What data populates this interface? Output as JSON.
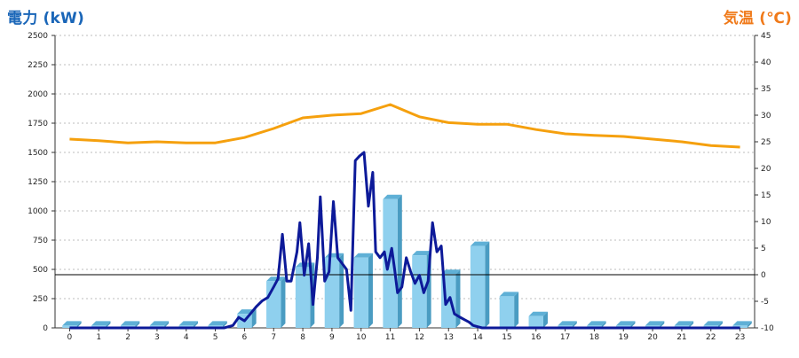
{
  "chart_data": {
    "type": "bar+line",
    "title": "",
    "left_axis": {
      "label": "電力 (kW)",
      "ylim": [
        0,
        2500
      ],
      "ticks": [
        0,
        250,
        500,
        750,
        1000,
        1250,
        1500,
        1750,
        2000,
        2250,
        2500
      ]
    },
    "right_axis": {
      "label": "気温 (℃)",
      "ylim": [
        -10,
        45
      ],
      "ticks": [
        -10,
        -5,
        0,
        5,
        10,
        15,
        20,
        25,
        30,
        35,
        40,
        45
      ]
    },
    "x_ticks": [
      "0",
      "1",
      "2",
      "3",
      "4",
      "5",
      "6",
      "7",
      "8",
      "9",
      "10",
      "11",
      "12",
      "13",
      "14",
      "15",
      "16",
      "17",
      "18",
      "19",
      "20",
      "21",
      "22",
      "23"
    ],
    "grid": true,
    "series": [
      {
        "type": "bar",
        "axis": "left",
        "color": "#8fd0ee",
        "values": [
          20,
          20,
          20,
          20,
          20,
          20,
          120,
          400,
          520,
          600,
          600,
          1100,
          620,
          460,
          700,
          270,
          100,
          20,
          20,
          20,
          20,
          20,
          20,
          20
        ]
      },
      {
        "type": "line",
        "axis": "left",
        "color": "#0d1a99",
        "x": [
          0,
          0.5,
          1,
          1.5,
          2,
          2.5,
          3,
          3.5,
          4,
          4.5,
          5,
          5.3,
          5.6,
          5.8,
          6,
          6.2,
          6.4,
          6.6,
          6.8,
          7,
          7.15,
          7.3,
          7.45,
          7.6,
          7.8,
          7.9,
          8.05,
          8.2,
          8.35,
          8.5,
          8.6,
          8.75,
          8.9,
          9.05,
          9.2,
          9.35,
          9.5,
          9.65,
          9.8,
          9.95,
          10.1,
          10.25,
          10.4,
          10.5,
          10.65,
          10.8,
          10.9,
          11.05,
          11.15,
          11.25,
          11.4,
          11.55,
          11.7,
          11.85,
          12,
          12.15,
          12.3,
          12.45,
          12.6,
          12.75,
          12.9,
          13.05,
          13.2,
          13.4,
          13.55,
          13.7,
          13.85,
          14,
          14.15,
          14.3,
          14.45,
          14.6,
          14.75,
          14.9,
          15.05,
          15.2,
          15.4,
          15.6,
          15.8,
          16,
          16.2,
          16.4,
          16.6,
          17,
          17.5,
          18,
          19,
          20,
          21,
          22,
          23
        ],
        "values": [
          0,
          0,
          0,
          0,
          0,
          0,
          0,
          0,
          0,
          0,
          0,
          0,
          20,
          90,
          60,
          120,
          180,
          230,
          260,
          350,
          420,
          800,
          400,
          400,
          650,
          900,
          450,
          720,
          200,
          600,
          1120,
          400,
          480,
          1080,
          600,
          550,
          500,
          150,
          1430,
          1470,
          1500,
          1040,
          1330,
          650,
          600,
          650,
          500,
          680,
          500,
          300,
          350,
          600,
          480,
          380,
          450,
          300,
          400,
          900,
          650,
          700,
          200,
          260,
          120,
          90,
          70,
          50,
          20,
          10,
          0,
          0,
          0,
          0,
          0,
          0,
          0,
          0,
          0,
          0,
          0,
          0,
          0,
          0,
          0,
          0,
          0,
          0,
          0,
          0,
          0,
          0,
          0
        ],
        "_note": ""
      },
      {
        "type": "line",
        "axis": "right",
        "color": "#f5a00e",
        "values": [
          25.5,
          25.2,
          24.8,
          25.0,
          24.8,
          24.8,
          25.8,
          27.5,
          29.5,
          30.0,
          30.3,
          32.0,
          29.7,
          28.6,
          28.3,
          28.3,
          27.3,
          26.5,
          26.2,
          26.0,
          25.5,
          25.0,
          24.3,
          24.0
        ]
      }
    ],
    "reference_line": {
      "axis": "right",
      "value": 0,
      "color": "#000000"
    }
  }
}
